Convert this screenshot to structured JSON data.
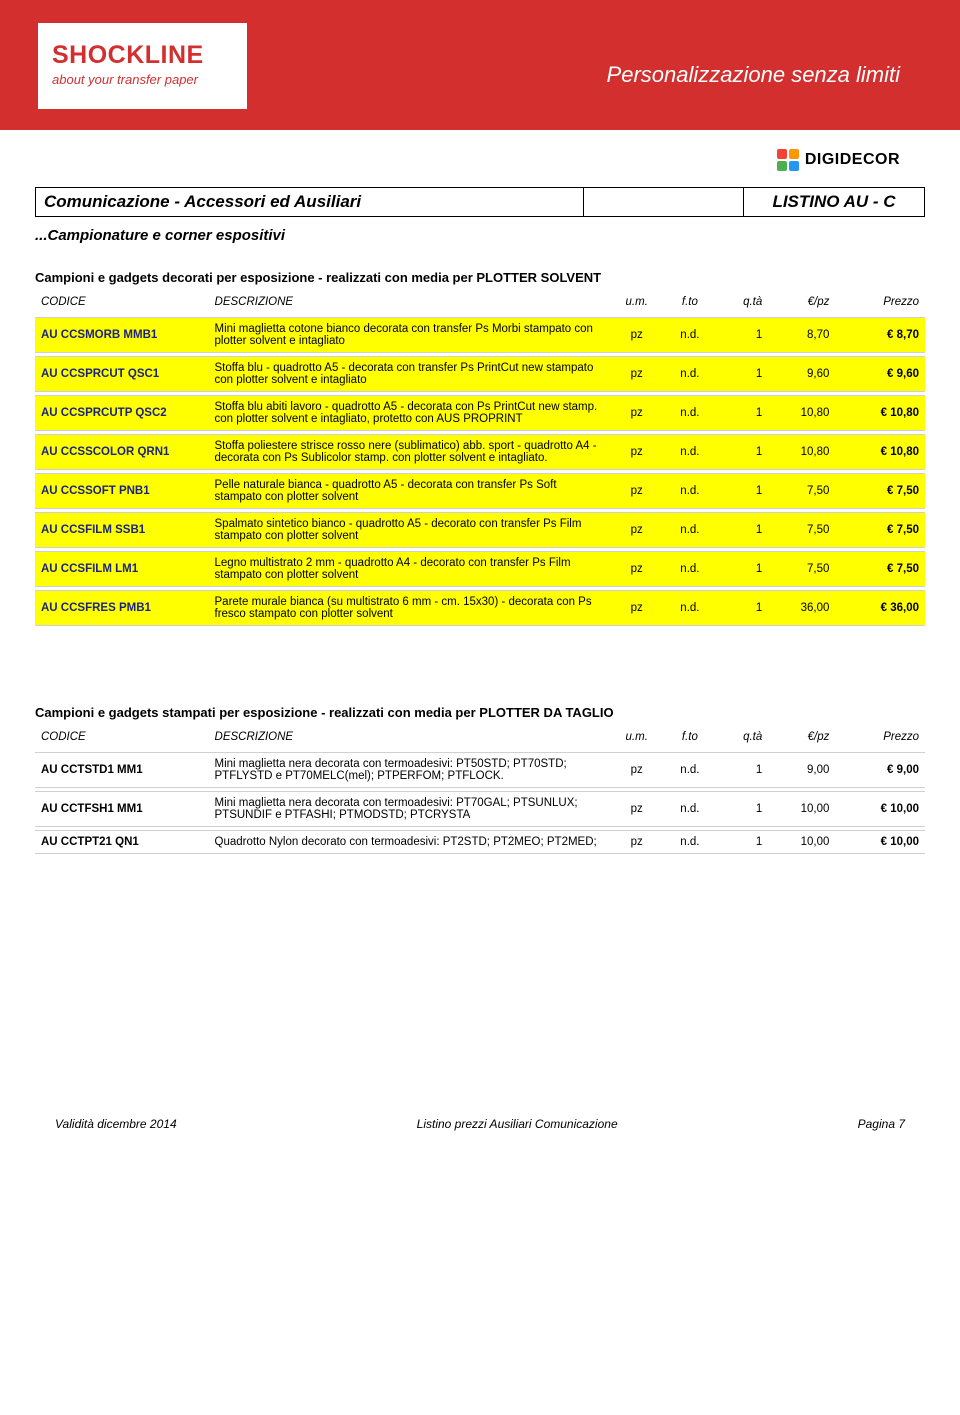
{
  "header": {
    "logo_main": "SHOCKLINE",
    "logo_sub": "about your transfer paper",
    "tagline": "Personalizzazione senza limiti",
    "digidecor": "DIGIDECOR"
  },
  "titlebar": {
    "left": "Comunicazione - Accessori ed Ausiliari",
    "right": "LISTINO AU - C"
  },
  "subtitle": "...Campionature e corner espositivi",
  "columns": {
    "codice": "CODICE",
    "descrizione": "DESCRIZIONE",
    "um": "u.m.",
    "fto": "f.to",
    "qta": "q.tà",
    "epz": "€/pz",
    "prezzo": "Prezzo"
  },
  "section1": {
    "title": "Campioni e gadgets decorati per esposizione - realizzati con media per PLOTTER SOLVENT",
    "rows": [
      {
        "code": "AU CCSMORB MMB1",
        "desc": "Mini maglietta cotone bianco decorata con transfer Ps Morbi stampato con plotter solvent e intagliato",
        "um": "pz",
        "fto": "n.d.",
        "qta": "1",
        "epz": "8,70",
        "prezzo": "€ 8,70"
      },
      {
        "code": "AU CCSPRCUT QSC1",
        "desc": "Stoffa blu - quadrotto A5 - decorata con transfer Ps PrintCut new stampato con plotter solvent e intagliato",
        "um": "pz",
        "fto": "n.d.",
        "qta": "1",
        "epz": "9,60",
        "prezzo": "€ 9,60"
      },
      {
        "code": "AU CCSPRCUTP QSC2",
        "desc": "Stoffa blu abiti lavoro - quadrotto A5 - decorata con Ps PrintCut new stamp. con plotter solvent e intagliato, protetto con AUS PROPRINT",
        "um": "pz",
        "fto": "n.d.",
        "qta": "1",
        "epz": "10,80",
        "prezzo": "€ 10,80"
      },
      {
        "code": "AU CCSSCOLOR QRN1",
        "desc": "Stoffa poliestere strisce rosso nere (sublimatico) abb. sport - quadrotto A4 - decorata con Ps Sublicolor stamp. con plotter solvent e intagliato.",
        "um": "pz",
        "fto": "n.d.",
        "qta": "1",
        "epz": "10,80",
        "prezzo": "€ 10,80"
      },
      {
        "code": "AU CCSSOFT PNB1",
        "desc": "Pelle naturale bianca - quadrotto A5 - decorata con transfer Ps Soft stampato con plotter solvent",
        "um": "pz",
        "fto": "n.d.",
        "qta": "1",
        "epz": "7,50",
        "prezzo": "€ 7,50"
      },
      {
        "code": "AU CCSFILM SSB1",
        "desc": "Spalmato sintetico bianco - quadrotto A5 - decorato con transfer Ps Film stampato con plotter solvent",
        "um": "pz",
        "fto": "n.d.",
        "qta": "1",
        "epz": "7,50",
        "prezzo": "€ 7,50"
      },
      {
        "code": "AU CCSFILM LM1",
        "desc": "Legno multistrato 2 mm - quadrotto A4 - decorato con transfer Ps Film stampato con plotter solvent",
        "um": "pz",
        "fto": "n.d.",
        "qta": "1",
        "epz": "7,50",
        "prezzo": "€ 7,50"
      },
      {
        "code": "AU CCSFRES PMB1",
        "desc": "Parete murale bianca (su multistrato 6 mm - cm. 15x30) - decorata con Ps fresco stampato con plotter solvent",
        "um": "pz",
        "fto": "n.d.",
        "qta": "1",
        "epz": "36,00",
        "prezzo": "€ 36,00"
      }
    ]
  },
  "section2": {
    "title": "Campioni e gadgets stampati per esposizione - realizzati con media per PLOTTER DA TAGLIO",
    "rows": [
      {
        "code": "AU CCTSTD1 MM1",
        "desc": "Mini maglietta nera decorata con termoadesivi: PT50STD; PT70STD; PTFLYSTD e PT70MELC(mel); PTPERFOM; PTFLOCK.",
        "um": "pz",
        "fto": "n.d.",
        "qta": "1",
        "epz": "9,00",
        "prezzo": "€ 9,00"
      },
      {
        "code": "AU CCTFSH1 MM1",
        "desc": "Mini maglietta nera decorata con termoadesivi: PT70GAL; PTSUNLUX; PTSUNDIF e PTFASHI; PTMODSTD; PTCRYSTA",
        "um": "pz",
        "fto": "n.d.",
        "qta": "1",
        "epz": "10,00",
        "prezzo": "€ 10,00"
      },
      {
        "code": "AU CCTPT21 QN1",
        "desc": "Quadrotto Nylon decorato con termoadesivi: PT2STD; PT2MEO; PT2MED;",
        "um": "pz",
        "fto": "n.d.",
        "qta": "1",
        "epz": "10,00",
        "prezzo": "€ 10,00"
      }
    ]
  },
  "footer": {
    "left": "Validità dicembre 2014",
    "center": "Listino prezzi Ausiliari Comunicazione",
    "right": "Pagina 7"
  },
  "style": {
    "brand_red": "#d32f2f",
    "row_yellow": "#ffff00",
    "border_gray": "#d0d0d0",
    "code_blue": "#1a237e",
    "background": "#ffffff"
  }
}
